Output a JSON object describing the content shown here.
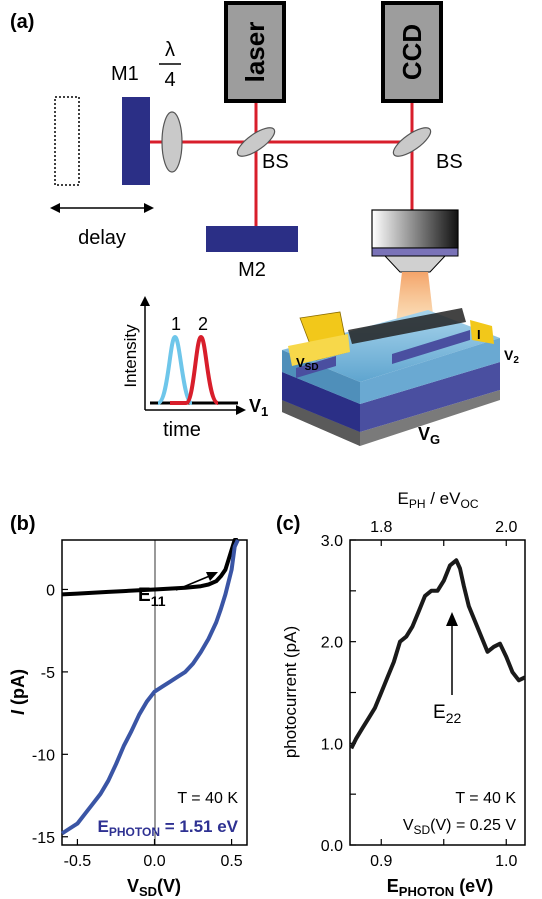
{
  "panel_a": {
    "label": "(a)",
    "laser": "laser",
    "ccd": "CCD",
    "m1": "M1",
    "m2": "M2",
    "bs": "BS",
    "lambda_num": "λ",
    "lambda_den": "4",
    "delay": "delay",
    "inset": {
      "ylabel": "Intensity",
      "xlabel": "time",
      "pulse1": "1",
      "pulse2": "2"
    },
    "device": {
      "vsd": "V",
      "vsd_sub": "SD",
      "i": "I",
      "v1": "V",
      "v1_sub": "1",
      "v2": "V",
      "v2_sub": "2",
      "vg": "V",
      "vg_sub": "G"
    },
    "colors": {
      "beam": "#d81e2b",
      "mirror": "#2b2f86",
      "pulse1": "#6ec6ea",
      "pulse2": "#d81e2b",
      "box": "#9d9d9d"
    }
  },
  "panel_b": {
    "label": "(b)",
    "annotation": "E",
    "annotation_sub": "11",
    "temp": "T = 40 K",
    "ephoton_main": "E",
    "ephoton_sub": "PHOTON",
    "ephoton_value": " = 1.51 eV",
    "ylabel_main": "I",
    "ylabel_unit": " (pA)",
    "xlabel_main": "V",
    "xlabel_sub": "SD",
    "xlabel_unit": "(V)",
    "chart_data": {
      "type": "line",
      "xlim": [
        -0.6,
        0.6
      ],
      "ylim": [
        -15.5,
        3
      ],
      "xticks": [
        -0.5,
        0.0,
        0.5
      ],
      "xtick_labels": [
        "-0.5",
        "0.0",
        "0.5"
      ],
      "yticks": [
        0,
        -5,
        -10,
        -15
      ],
      "ytick_labels": [
        "0",
        "-5",
        "-10",
        "-15"
      ],
      "series": [
        {
          "color": "#000000",
          "x": [
            -0.6,
            -0.5,
            -0.4,
            -0.3,
            -0.2,
            -0.1,
            0.0,
            0.1,
            0.2,
            0.3,
            0.35,
            0.4,
            0.43,
            0.46,
            0.48,
            0.5,
            0.52,
            0.54
          ],
          "y": [
            -0.3,
            -0.25,
            -0.2,
            -0.15,
            -0.1,
            -0.05,
            0.0,
            0.05,
            0.1,
            0.2,
            0.3,
            0.5,
            0.8,
            1.2,
            1.8,
            2.4,
            3.0,
            3.2
          ]
        },
        {
          "color": "#3a55a5",
          "x": [
            -0.6,
            -0.55,
            -0.5,
            -0.45,
            -0.4,
            -0.35,
            -0.3,
            -0.25,
            -0.2,
            -0.15,
            -0.1,
            -0.05,
            0.0,
            0.05,
            0.1,
            0.15,
            0.2,
            0.25,
            0.3,
            0.35,
            0.4,
            0.43,
            0.46,
            0.5,
            0.52,
            0.54
          ],
          "y": [
            -14.8,
            -14.5,
            -14.2,
            -13.6,
            -13.0,
            -12.4,
            -11.6,
            -10.6,
            -9.5,
            -8.6,
            -7.6,
            -6.8,
            -6.2,
            -5.9,
            -5.6,
            -5.3,
            -5.0,
            -4.5,
            -3.8,
            -3.0,
            -2.0,
            -1.2,
            -0.3,
            1.2,
            2.6,
            3.2
          ]
        }
      ]
    }
  },
  "panel_c": {
    "label": "(c)",
    "annotation": "E",
    "annotation_sub": "22",
    "temp": "T = 40 K",
    "vsd_main": "V",
    "vsd_sub": "SD",
    "vsd_value": "(V) = 0.25 V",
    "ylabel": "photocurrent (pA)",
    "xlabel_main": "E",
    "xlabel_sub": "PHOTON",
    "xlabel_unit": " (eV)",
    "toplabel_main": "E",
    "toplabel_sub1": "PH",
    "toplabel_mid": " / eV",
    "toplabel_sub2": "OC",
    "chart_data": {
      "type": "line",
      "xlim": [
        0.875,
        1.015
      ],
      "ylim": [
        0.0,
        3.0
      ],
      "xticks": [
        0.9,
        0.95,
        1.0
      ],
      "xtick_labels": [
        "0.9",
        "",
        "1.0"
      ],
      "yticks": [
        0.0,
        0.5,
        1.0,
        1.5,
        2.0,
        2.5,
        3.0
      ],
      "ytick_labels": [
        "0.0",
        "",
        "1.0",
        "",
        "2.0",
        "",
        "3.0"
      ],
      "top_ticks": [
        1.8,
        1.9,
        2.0
      ],
      "top_tick_labels": [
        "1.8",
        "",
        "2.0"
      ],
      "top_tick_positions": [
        0.9,
        0.95,
        1.0
      ],
      "series": [
        {
          "color": "#1a1a1a",
          "x": [
            0.876,
            0.88,
            0.885,
            0.89,
            0.895,
            0.9,
            0.905,
            0.91,
            0.915,
            0.92,
            0.925,
            0.93,
            0.935,
            0.94,
            0.945,
            0.95,
            0.955,
            0.96,
            0.963,
            0.966,
            0.97,
            0.975,
            0.98,
            0.985,
            0.99,
            0.995,
            1.0,
            1.005,
            1.01,
            1.015
          ],
          "y": [
            0.95,
            1.05,
            1.15,
            1.25,
            1.35,
            1.5,
            1.65,
            1.8,
            2.0,
            2.05,
            2.15,
            2.3,
            2.45,
            2.5,
            2.5,
            2.6,
            2.75,
            2.8,
            2.72,
            2.55,
            2.35,
            2.2,
            2.05,
            1.9,
            1.95,
            1.98,
            1.85,
            1.7,
            1.62,
            1.65
          ]
        }
      ]
    }
  }
}
